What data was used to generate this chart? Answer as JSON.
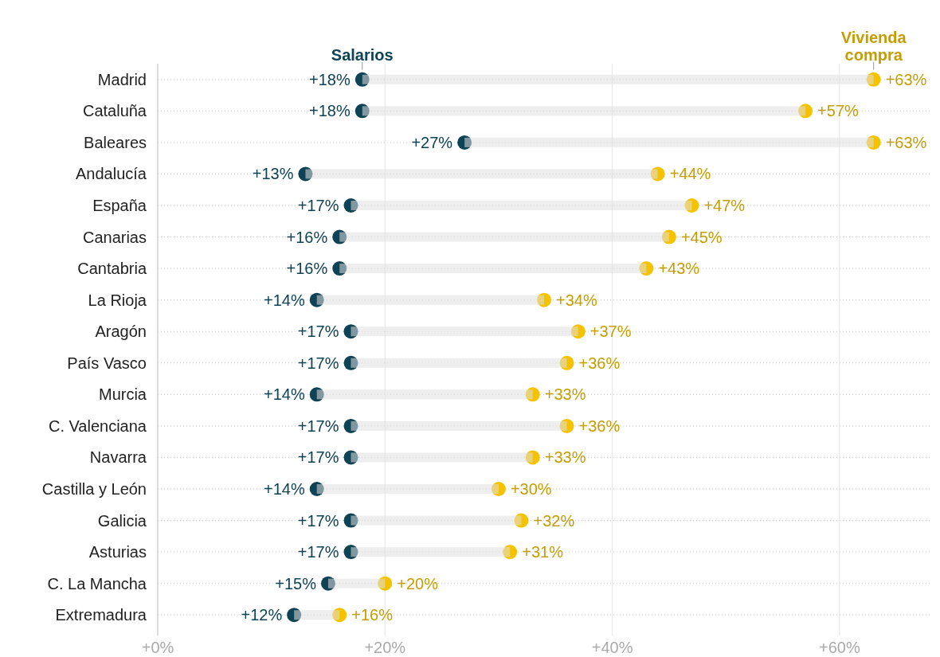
{
  "chart_data": {
    "type": "scatter",
    "orientation": "horizontal",
    "categories": [
      "Madrid",
      "Cataluña",
      "Baleares",
      "Andalucía",
      "España",
      "Canarias",
      "Cantabria",
      "La Rioja",
      "Aragón",
      "País Vasco",
      "Murcia",
      "C. Valenciana",
      "Navarra",
      "Castilla y León",
      "Galicia",
      "Asturias",
      "C. La Mancha",
      "Extremadura"
    ],
    "xlim": [
      0,
      68
    ],
    "xticks": [
      {
        "value": 0,
        "label": "+0%"
      },
      {
        "value": 20,
        "label": "+20%"
      },
      {
        "value": 40,
        "label": "+40%"
      },
      {
        "value": 60,
        "label": "+60%"
      }
    ],
    "grid": true,
    "marker": "circle",
    "series": [
      {
        "type": "bar",
        "color": "#e0e0e0",
        "base": [
          18,
          18,
          27,
          13,
          17,
          16,
          16,
          14,
          17,
          17,
          14,
          17,
          17,
          14,
          17,
          17,
          15,
          12
        ],
        "values": [
          45,
          39,
          36,
          31,
          30,
          29,
          27,
          20,
          20,
          19,
          19,
          19,
          16,
          16,
          15,
          14,
          5,
          4
        ]
      },
      {
        "name": "Salarios",
        "color": "#0e4255",
        "values": [
          18,
          18,
          27,
          13,
          17,
          16,
          16,
          14,
          17,
          17,
          14,
          17,
          17,
          14,
          17,
          17,
          15,
          12
        ],
        "value_labels": [
          "+18%",
          "+18%",
          "+27%",
          "+13%",
          "+17%",
          "+16%",
          "+16%",
          "+14%",
          "+17%",
          "+17%",
          "+14%",
          "+17%",
          "+17%",
          "+14%",
          "+17%",
          "+17%",
          "+15%",
          "+12%"
        ]
      },
      {
        "name": "Vivienda compra",
        "color": "#f5c200",
        "values": [
          63,
          57,
          63,
          44,
          47,
          45,
          43,
          34,
          37,
          36,
          33,
          36,
          33,
          30,
          32,
          31,
          20,
          16
        ],
        "value_labels": [
          "+63%",
          "+57%",
          "+63%",
          "+44%",
          "+47%",
          "+45%",
          "+43%",
          "+34%",
          "+37%",
          "+36%",
          "+33%",
          "+36%",
          "+33%",
          "+30%",
          "+32%",
          "+31%",
          "+20%",
          "+16%"
        ]
      }
    ]
  }
}
